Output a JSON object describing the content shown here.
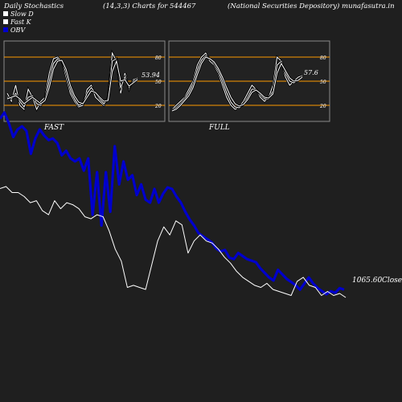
{
  "header": {
    "left": "Daily Stochastics",
    "params": "(14,3,3) Charts for 544467",
    "right": "(National Securities Depository) munafasutra.in"
  },
  "legend": [
    {
      "label": "Slow  D",
      "color": "#ffffff"
    },
    {
      "label": "Fast K",
      "color": "#ffffff"
    },
    {
      "label": "OBV",
      "color": "#0000cc"
    }
  ],
  "colors": {
    "background": "#1f1f1f",
    "panel": "#222222",
    "panel_border": "#8a8a8a",
    "grid_line": "#ff9900",
    "obv": "#0000cc",
    "close": "#ffffff"
  },
  "chart_data": [
    {
      "type": "line",
      "panel": "FAST",
      "title": "FAST",
      "y_ticks": [
        20,
        50,
        80
      ],
      "ylim": [
        0,
        100
      ],
      "reference_lines": [
        20,
        50,
        80
      ],
      "last_label": "53.94",
      "series": [
        {
          "values": [
            35,
            25,
            45,
            20,
            15,
            40,
            30,
            15,
            25,
            30,
            60,
            78,
            80,
            75,
            55,
            35,
            25,
            18,
            20,
            40,
            45,
            30,
            25,
            20,
            30,
            85,
            75,
            35,
            60,
            40,
            52,
            54
          ]
        },
        {
          "values": [
            30,
            28,
            35,
            25,
            18,
            30,
            32,
            22,
            20,
            28,
            50,
            72,
            78,
            76,
            60,
            40,
            28,
            20,
            22,
            35,
            42,
            35,
            28,
            22,
            28,
            75,
            78,
            42,
            55,
            42,
            50,
            53
          ]
        },
        {
          "values": [
            28,
            30,
            32,
            28,
            22,
            26,
            30,
            26,
            22,
            26,
            42,
            65,
            75,
            76,
            65,
            45,
            32,
            24,
            22,
            30,
            38,
            36,
            30,
            25,
            26,
            62,
            75,
            50,
            52,
            44,
            48,
            52
          ]
        }
      ]
    },
    {
      "type": "line",
      "panel": "FULL",
      "title": "FULL",
      "y_ticks": [
        20,
        50,
        80
      ],
      "ylim": [
        0,
        100
      ],
      "reference_lines": [
        20,
        50,
        80
      ],
      "last_label": "57.6",
      "series": [
        {
          "values": [
            15,
            20,
            25,
            30,
            40,
            50,
            70,
            80,
            85,
            75,
            70,
            60,
            45,
            30,
            20,
            15,
            18,
            25,
            35,
            45,
            40,
            30,
            25,
            30,
            45,
            80,
            75,
            55,
            45,
            50,
            55,
            57
          ]
        },
        {
          "values": [
            14,
            17,
            22,
            28,
            36,
            46,
            64,
            76,
            82,
            78,
            72,
            63,
            50,
            36,
            24,
            18,
            17,
            22,
            30,
            40,
            40,
            33,
            28,
            28,
            38,
            70,
            75,
            60,
            50,
            48,
            52,
            56
          ]
        },
        {
          "values": [
            13,
            15,
            20,
            26,
            32,
            42,
            58,
            72,
            80,
            78,
            74,
            66,
            55,
            42,
            30,
            22,
            19,
            21,
            27,
            36,
            39,
            35,
            30,
            29,
            34,
            60,
            72,
            63,
            54,
            50,
            51,
            55
          ]
        }
      ]
    },
    {
      "type": "line",
      "panel": "main",
      "series": [
        {
          "name": "OBV",
          "values": [
            480,
            500,
            465,
            420,
            445,
            455,
            440,
            365,
            415,
            445,
            425,
            410,
            415,
            400,
            360,
            375,
            350,
            340,
            350,
            310,
            350,
            165,
            305,
            130,
            305,
            175,
            390,
            265,
            340,
            280,
            295,
            230,
            265,
            215,
            205,
            250,
            205,
            235,
            255,
            250,
            225,
            205,
            175,
            150,
            130,
            105,
            95,
            85,
            75,
            55,
            45,
            50,
            25,
            20,
            40,
            30,
            20,
            15,
            10,
            -10,
            -25,
            -40,
            -50,
            -15,
            -30,
            -45,
            -55,
            -65,
            -80,
            -60,
            -40,
            -60,
            -75,
            -85,
            -95,
            -85,
            -90,
            -75,
            -80
          ]
        },
        {
          "name": "Close",
          "last_label": "1065.60",
          "values": [
            1330,
            1335,
            1320,
            1320,
            1310,
            1295,
            1300,
            1275,
            1265,
            1300,
            1280,
            1295,
            1290,
            1280,
            1260,
            1255,
            1265,
            1260,
            1225,
            1180,
            1150,
            1085,
            1090,
            1085,
            1080,
            1140,
            1200,
            1235,
            1215,
            1250,
            1240,
            1170,
            1200,
            1215,
            1200,
            1195,
            1180,
            1160,
            1145,
            1125,
            1110,
            1100,
            1090,
            1085,
            1095,
            1080,
            1075,
            1070,
            1065,
            1100,
            1110,
            1090,
            1085,
            1065,
            1075,
            1065,
            1070,
            1060
          ]
        }
      ]
    }
  ]
}
